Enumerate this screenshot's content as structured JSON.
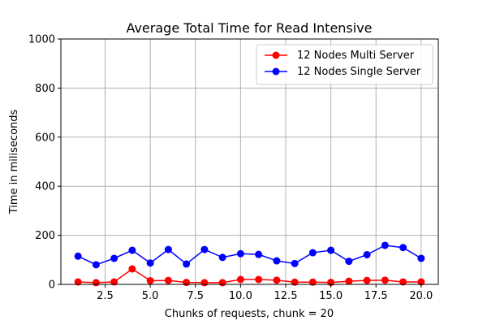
{
  "chart_data": {
    "type": "line",
    "title": "Average Total Time for Read Intensive",
    "xlabel": "Chunks of requests, chunk = 20",
    "ylabel": "Time in miliseconds",
    "xlim": [
      0.05,
      20.95
    ],
    "ylim": [
      0,
      1000
    ],
    "xticks": [
      2.5,
      5.0,
      7.5,
      10.0,
      12.5,
      15.0,
      17.5,
      20.0
    ],
    "xtick_labels": [
      "2.5",
      "5.0",
      "7.5",
      "10.0",
      "12.5",
      "15.0",
      "17.5",
      "20.0"
    ],
    "yticks": [
      0,
      200,
      400,
      600,
      800,
      1000
    ],
    "ytick_labels": [
      "0",
      "200",
      "400",
      "600",
      "800",
      "1000"
    ],
    "grid": true,
    "legend_position": "top-right",
    "x": [
      1,
      2,
      3,
      4,
      5,
      6,
      7,
      8,
      9,
      10,
      11,
      12,
      13,
      14,
      15,
      16,
      17,
      18,
      19,
      20
    ],
    "series": [
      {
        "name": "12 Nodes Multi Server",
        "color": "#ff0000",
        "values": [
          10,
          7,
          10,
          63,
          15,
          16,
          8,
          7,
          7,
          20,
          20,
          17,
          9,
          9,
          8,
          13,
          16,
          17,
          10,
          10
        ]
      },
      {
        "name": "12 Nodes Single Server",
        "color": "#0000ff",
        "values": [
          115,
          80,
          106,
          139,
          87,
          142,
          83,
          142,
          110,
          125,
          122,
          96,
          85,
          129,
          139,
          94,
          121,
          159,
          150,
          106
        ]
      }
    ]
  }
}
